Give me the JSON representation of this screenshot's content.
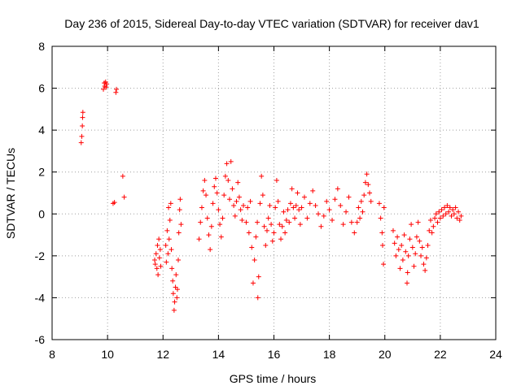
{
  "chart_data": {
    "type": "scatter",
    "title": "Day 236 of 2015, Sidereal Day-to-day VTEC variation (SDTVAR) for receiver dav1",
    "xlabel": "GPS time / hours",
    "ylabel": "SDTVAR / TECUs",
    "xlim": [
      8,
      24
    ],
    "ylim": [
      -6,
      8
    ],
    "xticks": [
      8,
      10,
      12,
      14,
      16,
      18,
      20,
      22,
      24
    ],
    "yticks": [
      -6,
      -4,
      -2,
      0,
      2,
      4,
      6,
      8
    ],
    "grid": true,
    "marker": "+",
    "color": "#ff0000",
    "series": [
      {
        "name": "SDTVAR",
        "points": [
          [
            9.05,
            3.4
          ],
          [
            9.07,
            3.7
          ],
          [
            9.09,
            4.2
          ],
          [
            9.1,
            4.6
          ],
          [
            9.11,
            4.85
          ],
          [
            9.85,
            5.95
          ],
          [
            9.88,
            6.25
          ],
          [
            9.9,
            6.1
          ],
          [
            9.93,
            6.3
          ],
          [
            9.95,
            6.05
          ],
          [
            9.97,
            6.2
          ],
          [
            10.2,
            0.5
          ],
          [
            10.25,
            0.55
          ],
          [
            10.3,
            5.8
          ],
          [
            10.32,
            5.95
          ],
          [
            10.55,
            1.8
          ],
          [
            10.6,
            0.8
          ],
          [
            11.7,
            -2.2
          ],
          [
            11.72,
            -2.4
          ],
          [
            11.75,
            -1.9
          ],
          [
            11.78,
            -2.6
          ],
          [
            11.8,
            -1.5
          ],
          [
            11.82,
            -2.9
          ],
          [
            11.85,
            -1.2
          ],
          [
            11.87,
            -2.1
          ],
          [
            11.9,
            -1.7
          ],
          [
            11.92,
            -2.5
          ],
          [
            12.1,
            -1.5
          ],
          [
            12.12,
            -2.3
          ],
          [
            12.15,
            -0.8
          ],
          [
            12.18,
            -1.9
          ],
          [
            12.2,
            0.3
          ],
          [
            12.22,
            -1.2
          ],
          [
            12.25,
            -0.3
          ],
          [
            12.28,
            0.5
          ],
          [
            12.3,
            -1.7
          ],
          [
            12.32,
            -2.6
          ],
          [
            12.35,
            -3.2
          ],
          [
            12.37,
            -3.8
          ],
          [
            12.4,
            -4.6
          ],
          [
            12.42,
            -4.2
          ],
          [
            12.45,
            -3.5
          ],
          [
            12.47,
            -2.9
          ],
          [
            12.5,
            -4.0
          ],
          [
            12.52,
            -3.6
          ],
          [
            12.55,
            -2.2
          ],
          [
            12.57,
            -0.9
          ],
          [
            12.6,
            0.2
          ],
          [
            12.62,
            0.7
          ],
          [
            12.65,
            -0.5
          ],
          [
            13.3,
            -1.2
          ],
          [
            13.35,
            -0.4
          ],
          [
            13.4,
            0.3
          ],
          [
            13.45,
            1.1
          ],
          [
            13.5,
            1.6
          ],
          [
            13.55,
            0.9
          ],
          [
            13.6,
            -0.2
          ],
          [
            13.65,
            -1.0
          ],
          [
            13.7,
            -1.7
          ],
          [
            13.75,
            -0.6
          ],
          [
            13.8,
            0.5
          ],
          [
            13.85,
            1.3
          ],
          [
            13.9,
            1.7
          ],
          [
            13.95,
            1.0
          ],
          [
            14.0,
            0.2
          ],
          [
            14.05,
            -0.5
          ],
          [
            14.1,
            -1.1
          ],
          [
            14.15,
            -0.2
          ],
          [
            14.2,
            0.9
          ],
          [
            14.25,
            1.8
          ],
          [
            14.3,
            2.4
          ],
          [
            14.35,
            1.6
          ],
          [
            14.4,
            0.7
          ],
          [
            14.45,
            2.5
          ],
          [
            14.5,
            1.2
          ],
          [
            14.55,
            0.4
          ],
          [
            14.6,
            -0.1
          ],
          [
            14.65,
            0.6
          ],
          [
            14.7,
            1.5
          ],
          [
            14.75,
            0.8
          ],
          [
            14.8,
            0.2
          ],
          [
            14.85,
            -0.3
          ],
          [
            14.9,
            0.4
          ],
          [
            15.0,
            -0.4
          ],
          [
            15.05,
            0.3
          ],
          [
            15.1,
            -0.9
          ],
          [
            15.15,
            0.6
          ],
          [
            15.2,
            -1.6
          ],
          [
            15.25,
            -3.3
          ],
          [
            15.3,
            -2.2
          ],
          [
            15.35,
            -1.1
          ],
          [
            15.4,
            -0.4
          ],
          [
            15.42,
            -4.0
          ],
          [
            15.45,
            -3.0
          ],
          [
            15.5,
            0.5
          ],
          [
            15.55,
            1.8
          ],
          [
            15.6,
            0.9
          ],
          [
            15.65,
            -0.6
          ],
          [
            15.7,
            -1.5
          ],
          [
            15.75,
            -0.8
          ],
          [
            15.8,
            -0.2
          ],
          [
            15.85,
            0.4
          ],
          [
            15.9,
            -0.5
          ],
          [
            15.95,
            -1.3
          ],
          [
            16.0,
            -0.9
          ],
          [
            16.05,
            0.3
          ],
          [
            16.1,
            1.6
          ],
          [
            16.15,
            0.6
          ],
          [
            16.2,
            -0.5
          ],
          [
            16.25,
            -1.2
          ],
          [
            16.3,
            -0.6
          ],
          [
            16.35,
            0.1
          ],
          [
            16.4,
            -0.9
          ],
          [
            16.45,
            -0.3
          ],
          [
            16.5,
            0.2
          ],
          [
            16.55,
            -0.4
          ],
          [
            16.6,
            0.5
          ],
          [
            16.65,
            1.2
          ],
          [
            16.7,
            0.3
          ],
          [
            16.75,
            -0.2
          ],
          [
            16.8,
            0.4
          ],
          [
            16.85,
            1.0
          ],
          [
            16.9,
            0.2
          ],
          [
            16.95,
            -0.5
          ],
          [
            17.0,
            0.3
          ],
          [
            17.1,
            0.8
          ],
          [
            17.2,
            -0.2
          ],
          [
            17.3,
            0.5
          ],
          [
            17.4,
            1.1
          ],
          [
            17.5,
            0.4
          ],
          [
            17.6,
            0.0
          ],
          [
            17.7,
            -0.6
          ],
          [
            17.8,
            -0.1
          ],
          [
            17.9,
            0.6
          ],
          [
            18.0,
            0.2
          ],
          [
            18.1,
            -0.3
          ],
          [
            18.2,
            0.7
          ],
          [
            18.3,
            1.2
          ],
          [
            18.4,
            0.4
          ],
          [
            18.5,
            -0.5
          ],
          [
            18.6,
            0.1
          ],
          [
            18.7,
            0.8
          ],
          [
            18.8,
            -0.4
          ],
          [
            18.9,
            -0.9
          ],
          [
            19.0,
            -0.4
          ],
          [
            19.05,
            0.3
          ],
          [
            19.1,
            -0.2
          ],
          [
            19.15,
            0.6
          ],
          [
            19.2,
            0.1
          ],
          [
            19.25,
            0.9
          ],
          [
            19.3,
            1.5
          ],
          [
            19.35,
            1.9
          ],
          [
            19.4,
            1.4
          ],
          [
            19.45,
            1.0
          ],
          [
            19.5,
            0.6
          ],
          [
            19.8,
            0.5
          ],
          [
            19.85,
            -0.2
          ],
          [
            19.9,
            -0.9
          ],
          [
            19.92,
            -1.5
          ],
          [
            19.95,
            -2.4
          ],
          [
            19.97,
            0.3
          ],
          [
            20.3,
            -0.8
          ],
          [
            20.35,
            -1.4
          ],
          [
            20.4,
            -2.0
          ],
          [
            20.45,
            -1.1
          ],
          [
            20.5,
            -1.7
          ],
          [
            20.55,
            -2.6
          ],
          [
            20.6,
            -1.5
          ],
          [
            20.65,
            -2.2
          ],
          [
            20.7,
            -1.0
          ],
          [
            20.75,
            -1.8
          ],
          [
            20.8,
            -3.3
          ],
          [
            20.82,
            -2.8
          ],
          [
            20.85,
            -2.0
          ],
          [
            20.9,
            -1.2
          ],
          [
            20.95,
            -0.5
          ],
          [
            21.0,
            -1.6
          ],
          [
            21.05,
            -2.5
          ],
          [
            21.1,
            -1.9
          ],
          [
            21.15,
            -1.1
          ],
          [
            21.2,
            -0.4
          ],
          [
            21.25,
            -1.3
          ],
          [
            21.3,
            -2.0
          ],
          [
            21.35,
            -1.6
          ],
          [
            21.4,
            -2.4
          ],
          [
            21.45,
            -2.7
          ],
          [
            21.5,
            -2.1
          ],
          [
            21.55,
            -1.5
          ],
          [
            21.6,
            -0.8
          ],
          [
            21.65,
            -0.3
          ],
          [
            21.7,
            -0.9
          ],
          [
            21.75,
            -0.6
          ],
          [
            21.8,
            -0.2
          ],
          [
            21.85,
            0.0
          ],
          [
            21.9,
            -0.4
          ],
          [
            21.95,
            0.1
          ],
          [
            22.0,
            -0.2
          ],
          [
            22.05,
            0.2
          ],
          [
            22.1,
            -0.1
          ],
          [
            22.15,
            0.3
          ],
          [
            22.2,
            0.0
          ],
          [
            22.25,
            0.4
          ],
          [
            22.3,
            0.1
          ],
          [
            22.35,
            0.3
          ],
          [
            22.4,
            -0.1
          ],
          [
            22.45,
            0.2
          ],
          [
            22.5,
            0.0
          ],
          [
            22.55,
            0.3
          ],
          [
            22.6,
            -0.2
          ],
          [
            22.65,
            0.1
          ],
          [
            22.7,
            -0.3
          ],
          [
            22.75,
            -0.1
          ]
        ]
      }
    ]
  }
}
